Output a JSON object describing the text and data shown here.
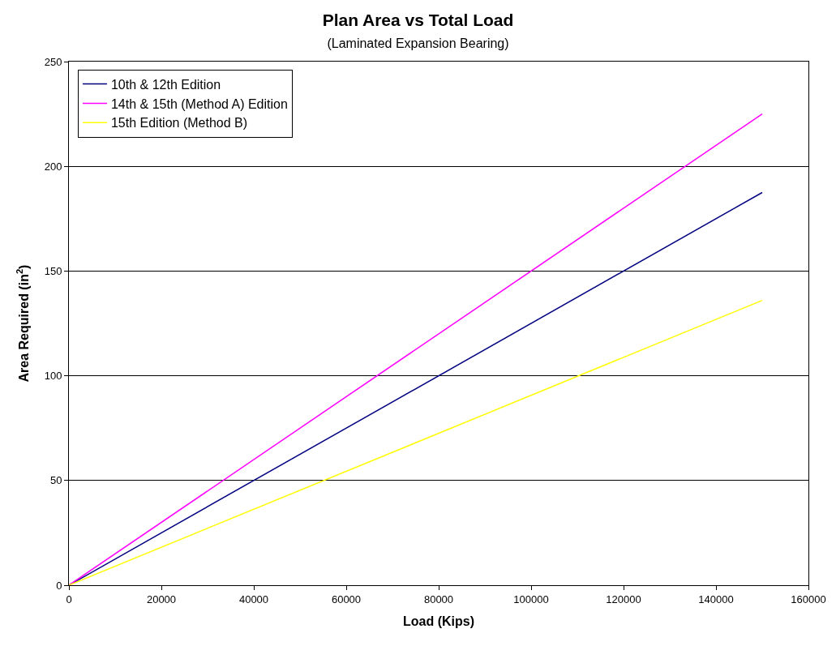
{
  "chart_data": {
    "type": "line",
    "title": "Plan Area vs Total Load",
    "subtitle": "(Laminated Expansion Bearing)",
    "xlabel": "Load (Kips)",
    "ylabel": "Area Required (in$^{2}$)",
    "x": [
      0,
      150000
    ],
    "series": [
      {
        "name": "10th & 12th Edition",
        "color": "#000080",
        "values": [
          0,
          187.5
        ]
      },
      {
        "name": "14th & 15th (Method A) Edition",
        "color": "#ff00ff",
        "values": [
          0,
          225
        ]
      },
      {
        "name": "15th Edition (Method B)",
        "color": "#ffff00",
        "values": [
          0,
          136
        ]
      }
    ],
    "xlim": [
      0,
      160000
    ],
    "xticks": [
      0,
      20000,
      40000,
      60000,
      80000,
      100000,
      120000,
      140000,
      160000
    ],
    "ylim": [
      0,
      250
    ],
    "yticks": [
      0,
      50,
      100,
      150,
      200,
      250
    ],
    "grid": "y",
    "legend": "top left",
    "marker": "none",
    "line_style": "solid"
  }
}
